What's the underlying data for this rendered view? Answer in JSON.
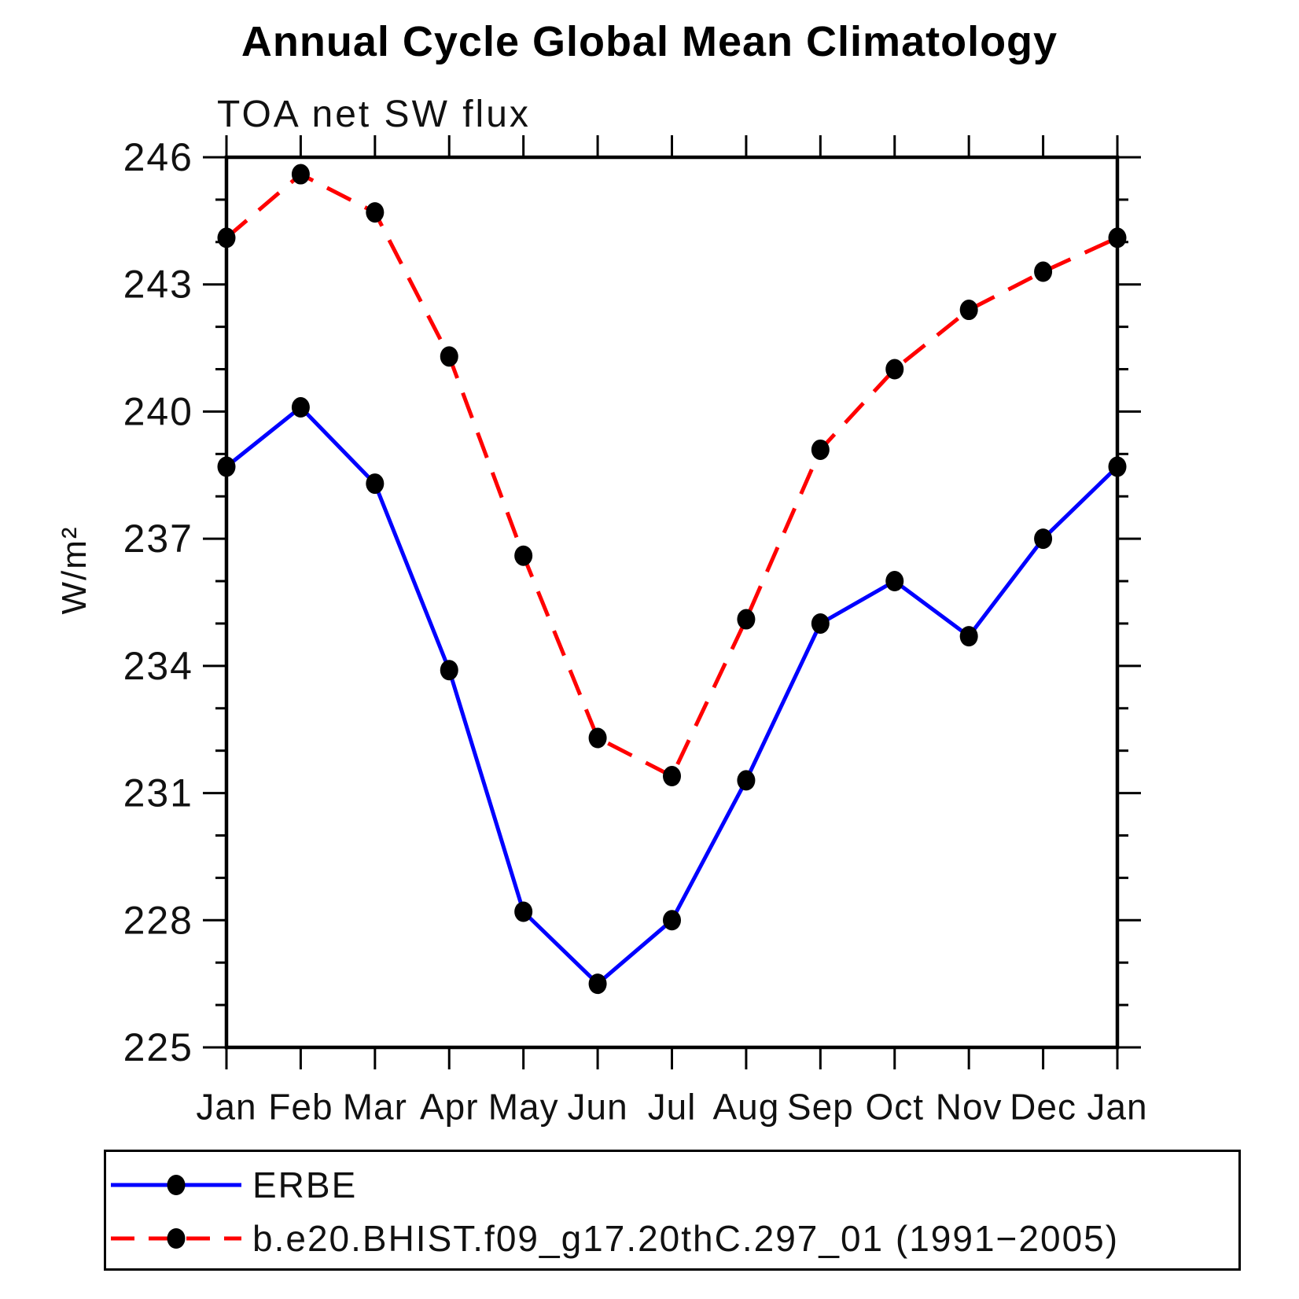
{
  "title": "Annual Cycle Global Mean Climatology",
  "subtitle": "TOA net SW flux",
  "y_axis_label": "W/m²",
  "chart_data": {
    "type": "line",
    "title": "Annual Cycle Global Mean Climatology",
    "subtitle": "TOA net SW flux",
    "xlabel": "",
    "ylabel": "W/m²",
    "categories": [
      "Jan",
      "Feb",
      "Mar",
      "Apr",
      "May",
      "Jun",
      "Jul",
      "Aug",
      "Sep",
      "Oct",
      "Nov",
      "Dec",
      "Jan"
    ],
    "series": [
      {
        "name": "ERBE",
        "color": "#0000ff",
        "line_style": "solid",
        "marker": "filled-circle",
        "marker_color": "#000000",
        "values": [
          238.7,
          240.1,
          238.3,
          233.9,
          228.2,
          226.5,
          228.0,
          231.3,
          235.0,
          236.0,
          234.7,
          237.0,
          238.7
        ]
      },
      {
        "name": "b.e20.BHIST.f09_g17.20thC.297_01 (1991−2005)",
        "color": "#ff0000",
        "line_style": "dashed",
        "marker": "filled-circle",
        "marker_color": "#000000",
        "values": [
          244.1,
          245.6,
          244.7,
          241.3,
          236.6,
          232.3,
          231.4,
          235.1,
          239.1,
          241.0,
          242.4,
          243.3,
          244.1
        ]
      }
    ],
    "ylim": [
      225,
      246
    ],
    "y_major_step": 3,
    "y_minor_step": 1,
    "y_major_tick_labels": [
      "225",
      "228",
      "231",
      "234",
      "237",
      "240",
      "243",
      "246"
    ],
    "grid": false,
    "axis_color": "#000000",
    "legend_position": "bottom"
  }
}
